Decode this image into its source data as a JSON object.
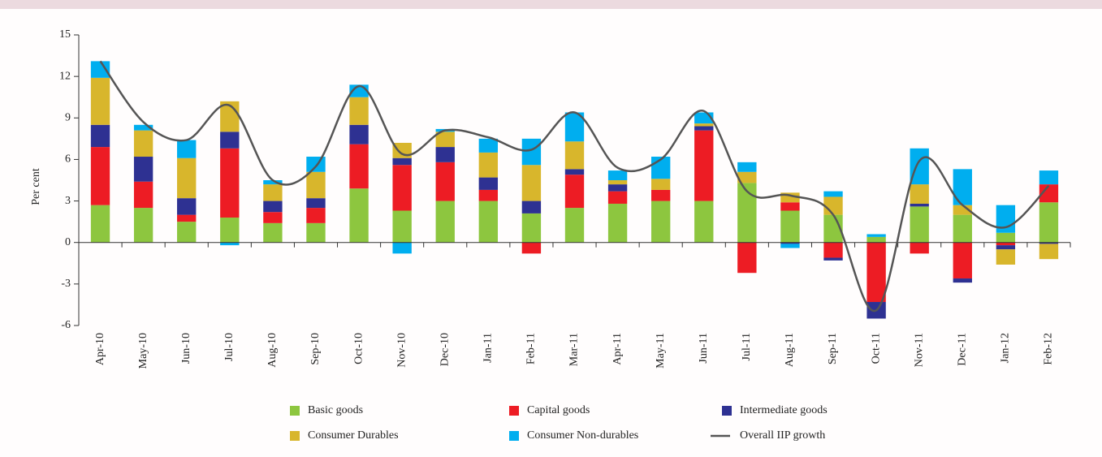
{
  "chart_data": {
    "type": "stacked-bar-line",
    "ylabel": "Per cent",
    "categories": [
      "Apr-10",
      "May-10",
      "Jun-10",
      "Jul-10",
      "Aug-10",
      "Sep-10",
      "Oct-10",
      "Nov-10",
      "Dec-10",
      "Jan-11",
      "Feb-11",
      "Mar-11",
      "Apr-11",
      "May-11",
      "Jun-11",
      "Jul-11",
      "Aug-11",
      "Sep-11",
      "Oct-11",
      "Nov-11",
      "Dec-11",
      "Jan-12",
      "Feb-12"
    ],
    "series": [
      {
        "name": "Basic goods",
        "color": "#8dc63f",
        "values": [
          2.7,
          2.5,
          1.5,
          1.8,
          1.4,
          1.4,
          3.9,
          2.3,
          3.0,
          3.0,
          2.1,
          2.5,
          2.8,
          3.0,
          3.0,
          4.3,
          2.3,
          2.0,
          0.4,
          2.6,
          2.0,
          0.7,
          2.9
        ]
      },
      {
        "name": "Capital goods",
        "color": "#ed1c24",
        "values": [
          4.2,
          1.9,
          0.5,
          5.0,
          0.8,
          1.1,
          3.2,
          3.3,
          2.8,
          0.8,
          -0.8,
          2.4,
          0.9,
          0.8,
          5.1,
          -2.2,
          0.6,
          -1.1,
          -4.3,
          -0.8,
          -2.6,
          -0.2,
          1.3
        ]
      },
      {
        "name": "Intermediate goods",
        "color": "#2e3192",
        "values": [
          1.6,
          1.8,
          1.2,
          1.2,
          0.8,
          0.7,
          1.4,
          0.5,
          1.1,
          0.9,
          0.9,
          0.4,
          0.5,
          0,
          0.3,
          0,
          -0.1,
          -0.2,
          -1.2,
          0.2,
          -0.3,
          -0.3,
          -0.1
        ]
      },
      {
        "name": "Consumer Durables",
        "color": "#d8b62c",
        "values": [
          3.4,
          1.9,
          2.9,
          2.2,
          1.2,
          1.9,
          2.0,
          1.1,
          1.1,
          1.8,
          2.6,
          2.0,
          0.3,
          0.8,
          0.2,
          0.8,
          0.7,
          1.3,
          0,
          1.4,
          0.7,
          -1.1,
          -1.1
        ]
      },
      {
        "name": "Consumer Non-durables",
        "color": "#00aeef",
        "values": [
          1.2,
          0.4,
          1.3,
          -0.2,
          0.3,
          1.1,
          0.9,
          -0.8,
          0.2,
          1.0,
          1.9,
          2.1,
          0.7,
          1.6,
          0.8,
          0.7,
          -0.3,
          0.4,
          0.2,
          2.6,
          2.6,
          2.0,
          1.0
        ]
      }
    ],
    "line": {
      "name": "Overall IIP growth",
      "color": "#555555",
      "values": [
        13.1,
        8.7,
        7.4,
        9.9,
        4.5,
        5.5,
        11.3,
        6.4,
        8.1,
        7.6,
        6.7,
        9.4,
        5.4,
        6.0,
        9.5,
        3.7,
        3.4,
        2.0,
        -4.9,
        5.9,
        2.7,
        1.1,
        4.1
      ]
    },
    "ylim": [
      -6,
      15
    ],
    "yticks": [
      -6,
      -3,
      0,
      3,
      6,
      9,
      12,
      15
    ]
  }
}
